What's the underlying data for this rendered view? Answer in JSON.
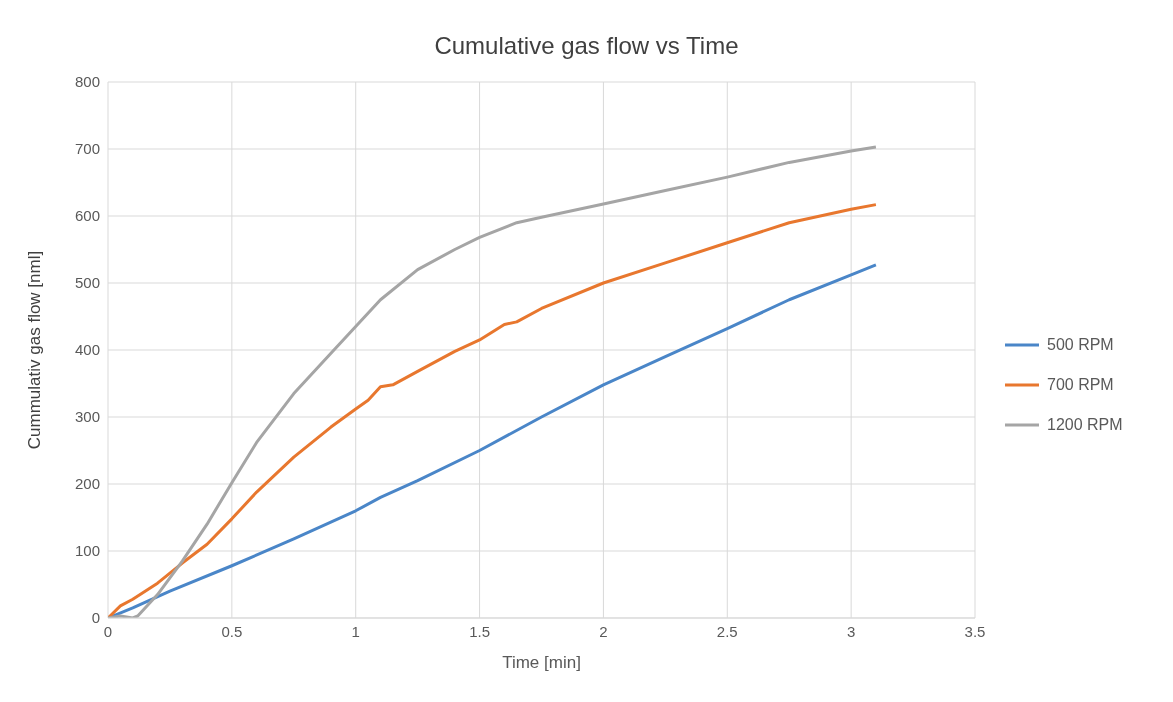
{
  "chart_data": {
    "type": "line",
    "title": "Cumulative gas flow vs Time",
    "xlabel": "Time [min]",
    "ylabel": "Cummulativ gas flow [nml]",
    "xlim": [
      0,
      3.5
    ],
    "xticks": [
      0,
      0.5,
      1,
      1.5,
      2,
      2.5,
      3,
      3.5
    ],
    "ylim": [
      0,
      800
    ],
    "yticks": [
      0,
      100,
      200,
      300,
      400,
      500,
      600,
      700,
      800
    ],
    "grid": true,
    "legend": "right",
    "marker": "none",
    "line_style": "solid",
    "series": [
      {
        "name": "500 RPM",
        "color": "#4a86c8",
        "x": [
          0,
          0.1,
          0.25,
          0.5,
          0.75,
          1,
          1.1,
          1.25,
          1.5,
          1.75,
          2,
          2.25,
          2.5,
          2.75,
          3,
          3.1
        ],
        "values": [
          0,
          15,
          40,
          78,
          118,
          160,
          180,
          205,
          250,
          300,
          348,
          390,
          432,
          475,
          512,
          527
        ]
      },
      {
        "name": "700 RPM",
        "color": "#e8772e",
        "x": [
          0,
          0.05,
          0.1,
          0.2,
          0.3,
          0.4,
          0.5,
          0.6,
          0.75,
          0.9,
          1,
          1.05,
          1.1,
          1.15,
          1.25,
          1.4,
          1.5,
          1.6,
          1.65,
          1.75,
          2,
          2.25,
          2.5,
          2.75,
          3,
          3.1
        ],
        "values": [
          0,
          18,
          28,
          52,
          82,
          110,
          148,
          188,
          240,
          285,
          312,
          325,
          345,
          348,
          368,
          398,
          415,
          438,
          442,
          462,
          500,
          530,
          560,
          590,
          610,
          617
        ]
      },
      {
        "name": "1200 RPM",
        "color": "#a5a5a5",
        "x": [
          0,
          0.05,
          0.1,
          0.12,
          0.2,
          0.3,
          0.4,
          0.5,
          0.6,
          0.75,
          0.9,
          1,
          1.1,
          1.25,
          1.4,
          1.5,
          1.65,
          1.75,
          2,
          2.25,
          2.5,
          2.75,
          3,
          3.1
        ],
        "values": [
          0,
          3,
          0,
          3,
          35,
          85,
          140,
          202,
          262,
          335,
          395,
          435,
          475,
          520,
          550,
          568,
          590,
          598,
          618,
          638,
          658,
          680,
          697,
          703
        ]
      }
    ]
  }
}
